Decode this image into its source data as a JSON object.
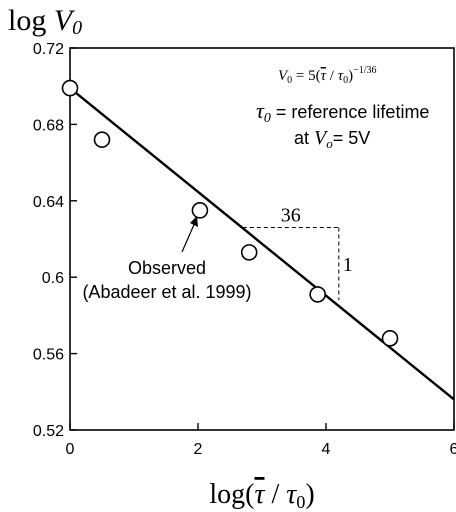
{
  "chart_data": {
    "type": "scatter",
    "title": "",
    "xlabel_base": "log(",
    "xlabel_tau": "τ",
    "xlabel_sep": " / ",
    "xlabel_tau0": "τ",
    "xlabel_sub": "0",
    "xlabel_close": ")",
    "ylabel_prefix": "log ",
    "ylabel_var": "V",
    "ylabel_sub": "0",
    "xlim": [
      0,
      6
    ],
    "ylim": [
      0.52,
      0.72
    ],
    "x_ticks": [
      0,
      2,
      4,
      6
    ],
    "x_tick_labels": [
      "0",
      "2",
      "4",
      "6"
    ],
    "y_ticks": [
      0.52,
      0.56,
      0.6,
      0.64,
      0.68,
      0.72
    ],
    "y_tick_labels": [
      "0.52",
      "0.56",
      "0.6",
      "0.64",
      "0.68",
      "0.72"
    ],
    "grid": false,
    "series": [
      {
        "name": "Observed (Abadeer et al. 1999)",
        "marker": "open-circle",
        "x": [
          0.0,
          0.5,
          2.03,
          2.8,
          3.87,
          5.0
        ],
        "y": [
          0.699,
          0.672,
          0.635,
          0.613,
          0.591,
          0.568
        ]
      }
    ],
    "fit_line": {
      "x": [
        0,
        6
      ],
      "y": [
        0.699,
        0.536
      ]
    },
    "slope_triangle": {
      "x_start": 2.7,
      "x_end": 4.2,
      "y_top": 0.626,
      "y_bottom": 0.588,
      "horizontal_label": "36",
      "vertical_label": "1"
    },
    "annotations": {
      "observed_line1": "Observed",
      "observed_line2": "(Abadeer et al. 1999)",
      "formula_left": "V",
      "formula_left_sub": "0",
      "formula_mid": " = 5(",
      "formula_tau": "τ",
      "formula_div": " / ",
      "formula_tau0": "τ",
      "formula_tau0_sub": "0",
      "formula_close": ")",
      "formula_exp": "−1/36",
      "ref_tau": "τ",
      "ref_tau_sub": "0",
      "ref_text": " = reference lifetime",
      "ref_line2_prefix": "at ",
      "ref_line2_var": "V",
      "ref_line2_sub": "o",
      "ref_line2_suffix": "= 5V"
    },
    "colors": {
      "ink": "#000000",
      "background": "#ffffff"
    }
  }
}
